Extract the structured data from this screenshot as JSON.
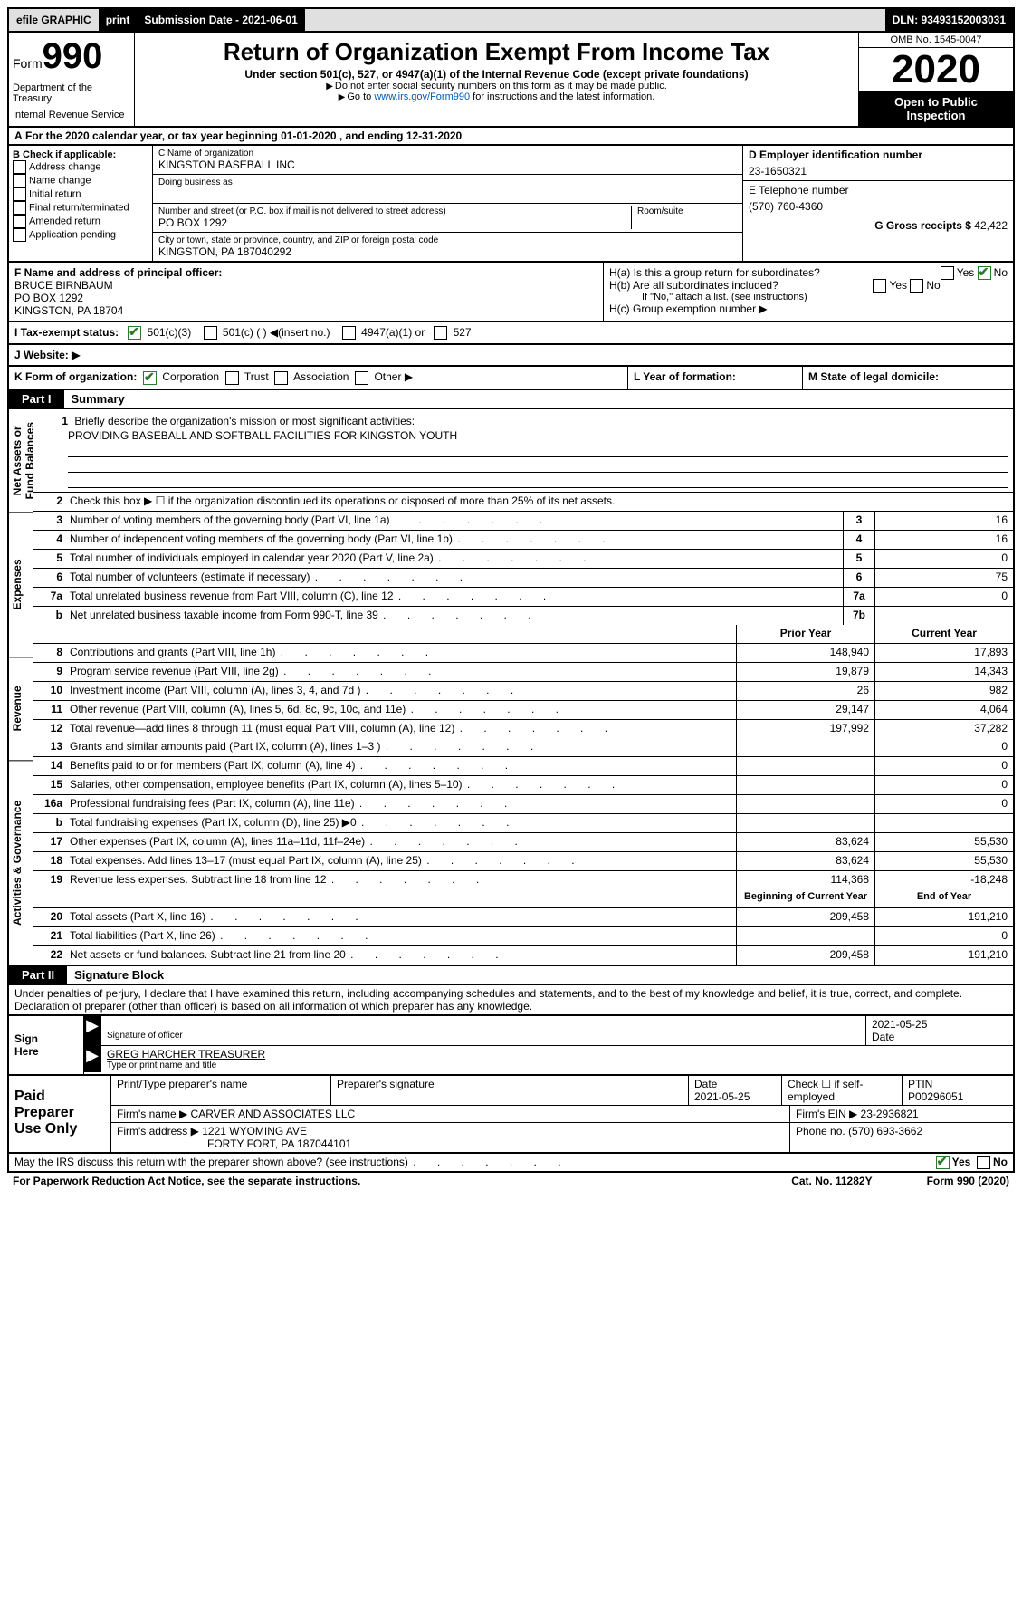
{
  "topbar": {
    "efile": "efile GRAPHIC",
    "print": "print",
    "subdate_label": "Submission Date - 2021-06-01",
    "dln": "DLN: 93493152003031"
  },
  "header": {
    "form_word": "Form",
    "form_num": "990",
    "dept": "Department of the Treasury",
    "irs": "Internal Revenue Service",
    "title": "Return of Organization Exempt From Income Tax",
    "sub1": "Under section 501(c), 527, or 4947(a)(1) of the Internal Revenue Code (except private foundations)",
    "sub2": "Do not enter social security numbers on this form as it may be made public.",
    "sub3_pre": "Go to ",
    "sub3_link": "www.irs.gov/Form990",
    "sub3_post": " for instructions and the latest information.",
    "omb": "OMB No. 1545-0047",
    "year": "2020",
    "open1": "Open to Public",
    "open2": "Inspection"
  },
  "period": {
    "label_a": "A",
    "text": "For the 2020 calendar year, or tax year beginning 01-01-2020    , and ending 12-31-2020"
  },
  "colB": {
    "label": "B Check if applicable:",
    "items": [
      "Address change",
      "Name change",
      "Initial return",
      "Final return/terminated",
      "Amended return",
      "Application pending"
    ]
  },
  "colC": {
    "name_label": "C Name of organization",
    "name": "KINGSTON BASEBALL INC",
    "dba_label": "Doing business as",
    "addr_label": "Number and street (or P.O. box if mail is not delivered to street address)",
    "addr": "PO BOX 1292",
    "room_label": "Room/suite",
    "city_label": "City or town, state or province, country, and ZIP or foreign postal code",
    "city": "KINGSTON, PA  187040292"
  },
  "colDE": {
    "d_label": "D Employer identification number",
    "d_val": "23-1650321",
    "e_label": "E Telephone number",
    "e_val": "(570) 760-4360",
    "g_label": "G Gross receipts $",
    "g_val": "42,422"
  },
  "rowF": {
    "f_label": "F  Name and address of principal officer:",
    "f_name": "BRUCE BIRNBAUM",
    "f_addr1": "PO BOX 1292",
    "f_addr2": "KINGSTON, PA  18704",
    "ha_label": "H(a)  Is this a group return for subordinates?",
    "hb_label": "H(b)  Are all subordinates included?",
    "hb_note": "If \"No,\" attach a list. (see instructions)",
    "hc_label": "H(c)  Group exemption number ▶",
    "yes": "Yes",
    "no": "No"
  },
  "rowI": {
    "label": "I    Tax-exempt status:",
    "o1": "501(c)(3)",
    "o2": "501(c) (   ) ◀(insert no.)",
    "o3": "4947(a)(1) or",
    "o4": "527"
  },
  "rowJ": {
    "label": "J    Website: ▶"
  },
  "rowKLM": {
    "k": "K Form of organization:",
    "k_opts": [
      "Corporation",
      "Trust",
      "Association",
      "Other ▶"
    ],
    "l": "L Year of formation:",
    "m": "M State of legal domicile:"
  },
  "part1_label": "Part I",
  "part1_name": "Summary",
  "vtabs": [
    "Net Assets or Fund Balances",
    "Expenses",
    "Revenue",
    "Activities & Governance"
  ],
  "mission": {
    "num": "1",
    "label": "Briefly describe the organization's mission or most significant activities:",
    "text": "PROVIDING BASEBALL AND SOFTBALL FACILITIES FOR KINGSTON YOUTH"
  },
  "lines_gov": [
    {
      "num": "2",
      "text": "Check this box ▶ ☐  if the organization discontinued its operations or disposed of more than 25% of its net assets."
    },
    {
      "num": "3",
      "text": "Number of voting members of the governing body (Part VI, line 1a)",
      "box": "3",
      "val": "16"
    },
    {
      "num": "4",
      "text": "Number of independent voting members of the governing body (Part VI, line 1b)",
      "box": "4",
      "val": "16"
    },
    {
      "num": "5",
      "text": "Total number of individuals employed in calendar year 2020 (Part V, line 2a)",
      "box": "5",
      "val": "0"
    },
    {
      "num": "6",
      "text": "Total number of volunteers (estimate if necessary)",
      "box": "6",
      "val": "75"
    },
    {
      "num": "7a",
      "text": "Total unrelated business revenue from Part VIII, column (C), line 12",
      "box": "7a",
      "val": "0"
    },
    {
      "num": "b",
      "text": "Net unrelated business taxable income from Form 990-T, line 39",
      "box": "7b",
      "val": ""
    }
  ],
  "pycy_hdr": {
    "py": "Prior Year",
    "cy": "Current Year"
  },
  "lines_rev": [
    {
      "num": "8",
      "text": "Contributions and grants (Part VIII, line 1h)",
      "py": "148,940",
      "cy": "17,893"
    },
    {
      "num": "9",
      "text": "Program service revenue (Part VIII, line 2g)",
      "py": "19,879",
      "cy": "14,343"
    },
    {
      "num": "10",
      "text": "Investment income (Part VIII, column (A), lines 3, 4, and 7d )",
      "py": "26",
      "cy": "982"
    },
    {
      "num": "11",
      "text": "Other revenue (Part VIII, column (A), lines 5, 6d, 8c, 9c, 10c, and 11e)",
      "py": "29,147",
      "cy": "4,064"
    },
    {
      "num": "12",
      "text": "Total revenue—add lines 8 through 11 (must equal Part VIII, column (A), line 12)",
      "py": "197,992",
      "cy": "37,282"
    }
  ],
  "lines_exp": [
    {
      "num": "13",
      "text": "Grants and similar amounts paid (Part IX, column (A), lines 1–3 )",
      "py": "",
      "cy": "0"
    },
    {
      "num": "14",
      "text": "Benefits paid to or for members (Part IX, column (A), line 4)",
      "py": "",
      "cy": "0"
    },
    {
      "num": "15",
      "text": "Salaries, other compensation, employee benefits (Part IX, column (A), lines 5–10)",
      "py": "",
      "cy": "0"
    },
    {
      "num": "16a",
      "text": "Professional fundraising fees (Part IX, column (A), line 11e)",
      "py": "",
      "cy": "0"
    },
    {
      "num": "b",
      "text": "Total fundraising expenses (Part IX, column (D), line 25) ▶0",
      "py": "GRAY",
      "cy": "GRAY"
    },
    {
      "num": "17",
      "text": "Other expenses (Part IX, column (A), lines 11a–11d, 11f–24e)",
      "py": "83,624",
      "cy": "55,530"
    },
    {
      "num": "18",
      "text": "Total expenses. Add lines 13–17 (must equal Part IX, column (A), line 25)",
      "py": "83,624",
      "cy": "55,530"
    },
    {
      "num": "19",
      "text": "Revenue less expenses. Subtract line 18 from line 12",
      "py": "114,368",
      "cy": "-18,248"
    }
  ],
  "net_hdr": {
    "beg": "Beginning of Current Year",
    "end": "End of Year"
  },
  "lines_net": [
    {
      "num": "20",
      "text": "Total assets (Part X, line 16)",
      "py": "209,458",
      "cy": "191,210"
    },
    {
      "num": "21",
      "text": "Total liabilities (Part X, line 26)",
      "py": "",
      "cy": "0"
    },
    {
      "num": "22",
      "text": "Net assets or fund balances. Subtract line 21 from line 20",
      "py": "209,458",
      "cy": "191,210"
    }
  ],
  "part2_label": "Part II",
  "part2_name": "Signature Block",
  "perjury": "Under penalties of perjury, I declare that I have examined this return, including accompanying schedules and statements, and to the best of my knowledge and belief, it is true, correct, and complete. Declaration of preparer (other than officer) is based on all information of which preparer has any knowledge.",
  "sign": {
    "left1": "Sign",
    "left2": "Here",
    "sig_label": "Signature of officer",
    "date": "2021-05-25",
    "date_label": "Date",
    "name": "GREG HARCHER  TREASURER",
    "name_label": "Type or print name and title"
  },
  "paid": {
    "left1": "Paid",
    "left2": "Preparer",
    "left3": "Use Only",
    "h_print": "Print/Type preparer's name",
    "h_sig": "Preparer's signature",
    "h_date": "Date",
    "date": "2021-05-25",
    "h_check": "Check ☐ if self-employed",
    "h_ptin": "PTIN",
    "ptin": "P00296051",
    "firm_label": "Firm's name     ▶",
    "firm": "CARVER AND ASSOCIATES LLC",
    "ein_label": "Firm's EIN ▶",
    "ein": "23-2936821",
    "addr_label": "Firm's address ▶",
    "addr1": "1221 WYOMING AVE",
    "addr2": "FORTY FORT, PA  187044101",
    "phone_label": "Phone no.",
    "phone": "(570) 693-3662"
  },
  "footer": {
    "discuss": "May the IRS discuss this return with the preparer shown above? (see instructions)",
    "yes": "Yes",
    "no": "No",
    "paperwork": "For Paperwork Reduction Act Notice, see the separate instructions.",
    "cat": "Cat. No. 11282Y",
    "form": "Form 990 (2020)"
  }
}
